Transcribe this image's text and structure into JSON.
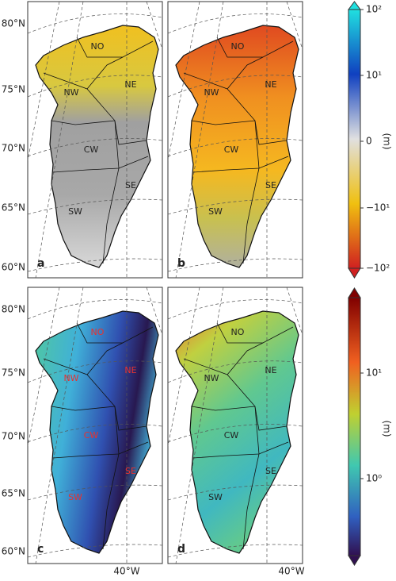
{
  "panels": [
    {
      "letter": "a",
      "regions": [
        "NO",
        "NE",
        "NW",
        "CW",
        "SE",
        "SW"
      ]
    },
    {
      "letter": "b",
      "regions": [
        "NO",
        "NE",
        "NW",
        "CW",
        "SE",
        "SW"
      ]
    },
    {
      "letter": "c",
      "regions": [
        "NO",
        "NE",
        "NW",
        "CW",
        "SE",
        "SW"
      ]
    },
    {
      "letter": "d",
      "regions": [
        "NO",
        "NE",
        "NW",
        "CW",
        "SE",
        "SW"
      ]
    }
  ],
  "latitude_labels": {
    "top": [
      "80°N",
      "75°N",
      "70°N",
      "65°N",
      "60°N"
    ],
    "bottom": [
      "80°N",
      "75°N",
      "70°N",
      "65°N",
      "60°N"
    ]
  },
  "longitude_labels": [
    "40°W",
    "40°W"
  ],
  "colorbars": [
    {
      "ticks": [
        "10²",
        "10¹",
        "0",
        "−10¹",
        "−10²"
      ],
      "unit": "(m)"
    },
    {
      "ticks": [
        "10¹",
        "10⁰"
      ],
      "unit": "(m)"
    }
  ]
}
